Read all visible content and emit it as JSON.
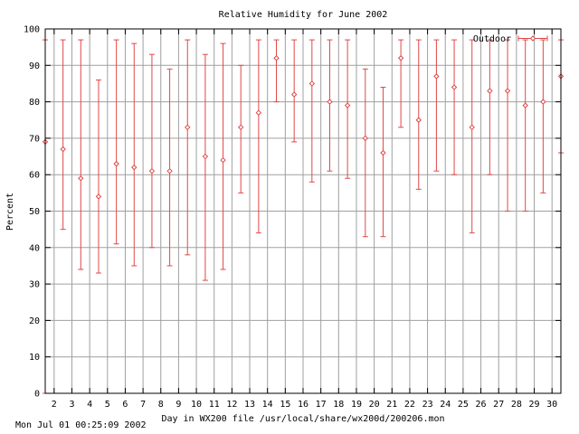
{
  "footer": {
    "timestamp": "Mon Jul 01 00:25:09 2002"
  },
  "colors": {
    "series": "#e04848",
    "grid": "#a0a0a0",
    "axis": "#000000",
    "background": "#ffffff"
  },
  "chart_data": {
    "type": "errorbar",
    "title": "Relative Humidity for June 2002",
    "xlabel": "Day in WX200 file /usr/local/share/wx200d/200206.mon",
    "ylabel": "Percent",
    "xlim": [
      1.5,
      30.5
    ],
    "ylim": [
      0,
      100
    ],
    "xticks": [
      2,
      3,
      4,
      5,
      6,
      7,
      8,
      9,
      10,
      11,
      12,
      13,
      14,
      15,
      16,
      17,
      18,
      19,
      20,
      21,
      22,
      23,
      24,
      25,
      26,
      27,
      28,
      29,
      30
    ],
    "yticks": [
      0,
      10,
      20,
      30,
      40,
      50,
      60,
      70,
      80,
      90,
      100
    ],
    "grid": true,
    "legend_position": "top-right",
    "series": [
      {
        "name": "Outdoor",
        "points": [
          {
            "x": 1.5,
            "y": 69,
            "low": 0,
            "high": 97
          },
          {
            "x": 2.5,
            "y": 67,
            "low": 45,
            "high": 97
          },
          {
            "x": 3.5,
            "y": 59,
            "low": 34,
            "high": 97
          },
          {
            "x": 4.5,
            "y": 54,
            "low": 33,
            "high": 86
          },
          {
            "x": 5.5,
            "y": 63,
            "low": 41,
            "high": 97
          },
          {
            "x": 6.5,
            "y": 62,
            "low": 35,
            "high": 96
          },
          {
            "x": 7.5,
            "y": 61,
            "low": 40,
            "high": 93
          },
          {
            "x": 8.5,
            "y": 61,
            "low": 35,
            "high": 89
          },
          {
            "x": 9.5,
            "y": 73,
            "low": 38,
            "high": 97
          },
          {
            "x": 10.5,
            "y": 65,
            "low": 31,
            "high": 93
          },
          {
            "x": 11.5,
            "y": 64,
            "low": 34,
            "high": 96
          },
          {
            "x": 12.5,
            "y": 73,
            "low": 55,
            "high": 90
          },
          {
            "x": 13.5,
            "y": 77,
            "low": 44,
            "high": 97
          },
          {
            "x": 14.5,
            "y": 92,
            "low": 80,
            "high": 97
          },
          {
            "x": 15.5,
            "y": 82,
            "low": 69,
            "high": 97
          },
          {
            "x": 16.5,
            "y": 85,
            "low": 58,
            "high": 97
          },
          {
            "x": 17.5,
            "y": 80,
            "low": 61,
            "high": 97
          },
          {
            "x": 18.5,
            "y": 79,
            "low": 59,
            "high": 97
          },
          {
            "x": 19.5,
            "y": 70,
            "low": 43,
            "high": 89
          },
          {
            "x": 20.5,
            "y": 66,
            "low": 43,
            "high": 84
          },
          {
            "x": 21.5,
            "y": 92,
            "low": 73,
            "high": 97
          },
          {
            "x": 22.5,
            "y": 75,
            "low": 56,
            "high": 97
          },
          {
            "x": 23.5,
            "y": 87,
            "low": 61,
            "high": 97
          },
          {
            "x": 24.5,
            "y": 84,
            "low": 60,
            "high": 97
          },
          {
            "x": 25.5,
            "y": 73,
            "low": 44,
            "high": 97
          },
          {
            "x": 26.5,
            "y": 83,
            "low": 60,
            "high": 97
          },
          {
            "x": 27.5,
            "y": 83,
            "low": 50,
            "high": 97
          },
          {
            "x": 28.5,
            "y": 79,
            "low": 50,
            "high": 97
          },
          {
            "x": 29.5,
            "y": 80,
            "low": 55,
            "high": 97
          },
          {
            "x": 30.5,
            "y": 87,
            "low": 66,
            "high": 97
          }
        ]
      }
    ]
  }
}
